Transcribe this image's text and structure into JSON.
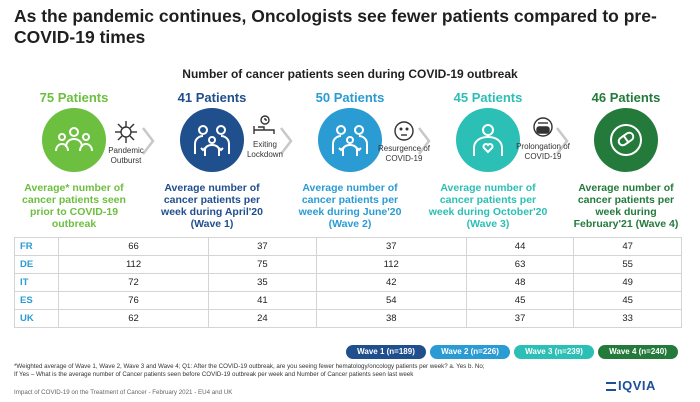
{
  "title": "As the pandemic continues, Oncologists see fewer patients compared to pre-COVID-19 times",
  "subtitle": "Number of cancer patients seen during COVID-19 outbreak",
  "stages": [
    {
      "count": "75 Patients",
      "desc": "Average* number of cancer patients seen prior to COVID-19 outbreak",
      "color": "#6cbf3f",
      "text_color": "#6cbf3f",
      "icon": "group-icon"
    },
    {
      "count": "41 Patients",
      "desc": "Average number of cancer patients per week during April'20 (Wave 1)",
      "color": "#1f4f8c",
      "text_color": "#1f4f8c",
      "icon": "family-hearts-icon"
    },
    {
      "count": "50 Patients",
      "desc": "Average number of cancer patients per week during June'20 (Wave 2)",
      "color": "#2a9bd3",
      "text_color": "#2a9bd3",
      "icon": "family-hearts-icon"
    },
    {
      "count": "45 Patients",
      "desc": "Average number of cancer patients per week during October'20 (Wave 3)",
      "color": "#2bbfb5",
      "text_color": "#2bbfb5",
      "icon": "person-heart-icon"
    },
    {
      "count": "46 Patients",
      "desc": "Average number of cancer patients per week during February'21 (Wave 4)",
      "color": "#237a3b",
      "text_color": "#237a3b",
      "icon": "person-pill-icon"
    }
  ],
  "transitions": [
    {
      "label": "Pandemic Outburst",
      "icon": "virus-icon"
    },
    {
      "label": "Exiting Lockdown",
      "icon": "hospital-bed-icon"
    },
    {
      "label": "Resurgence of COVID-19",
      "icon": "sad-face-icon"
    },
    {
      "label": "Prolongation of COVID-19",
      "icon": "masked-face-icon"
    }
  ],
  "table": {
    "rows": [
      {
        "country": "FR",
        "values": [
          "66",
          "37",
          "37",
          "44",
          "47"
        ]
      },
      {
        "country": "DE",
        "values": [
          "112",
          "75",
          "112",
          "63",
          "55"
        ]
      },
      {
        "country": "IT",
        "values": [
          "72",
          "35",
          "42",
          "48",
          "49"
        ]
      },
      {
        "country": "ES",
        "values": [
          "76",
          "41",
          "54",
          "45",
          "45"
        ]
      },
      {
        "country": "UK",
        "values": [
          "62",
          "24",
          "38",
          "37",
          "33"
        ]
      }
    ]
  },
  "legend": [
    {
      "label": "Wave 1 (n=189)",
      "color": "#1f4f8c"
    },
    {
      "label": "Wave 2 (n=226)",
      "color": "#2a9bd3"
    },
    {
      "label": "Wave 3 (n=239)",
      "color": "#2bbfb5"
    },
    {
      "label": "Wave 4 (n=240)",
      "color": "#237a3b"
    }
  ],
  "footnote_1": "*Weighted average of Wave 1, Wave 2, Wave 3 and Wave 4; Q1: After the COVID-19 outbreak, are you seeing fewer hematology/oncology patients per week? a. Yes b. No;",
  "footnote_2": "If Yes – What is the average number of Cancer patients seen before COVID-19 outbreak per week and Number of Cancer patients seen last week",
  "source": "Impact of COVID-19 on the Treatment of Cancer - February 2021 - EU4 and UK",
  "logo": "IQVIA"
}
